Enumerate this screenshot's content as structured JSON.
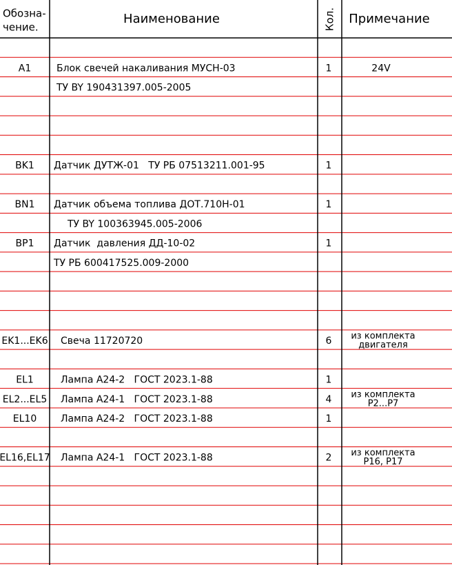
{
  "header": {
    "designation": [
      "Обозна-",
      "чение."
    ],
    "name": "Наименование",
    "qty": "Кол.",
    "note": "Примечание"
  },
  "table": {
    "rows": [
      {},
      {
        "designation": "A1",
        "name": "Блок свечей накаливания МУСН-03",
        "qty": "1",
        "note": [
          "24V"
        ]
      },
      {
        "name": "ТУ BY 190431397.005-2005"
      },
      {},
      {},
      {},
      {
        "designation": "BK1",
        "name": "Датчик ДУТЖ-01   ТУ РБ 07513211.001-95",
        "qty": "1"
      },
      {},
      {
        "designation": "BN1",
        "name": "Датчик объема топлива ДОТ.710Н-01",
        "qty": "1"
      },
      {
        "name": "ТУ BY 100363945.005-2006"
      },
      {
        "designation": "BP1",
        "name": "Датчик  давления ДД-10-02",
        "qty": "1"
      },
      {
        "name": "ТУ РБ 600417525.009-2000"
      },
      {},
      {},
      {},
      {
        "designation": "EK1...EK6",
        "name": "Свеча 11720720",
        "qty": "6",
        "note": [
          "из комплекта",
          "двигателя"
        ]
      },
      {},
      {
        "designation": "EL1",
        "name": "Лампа А24-2   ГОСТ 2023.1-88",
        "qty": "1"
      },
      {
        "designation": "EL2...EL5",
        "name": "Лампа А24-1   ГОСТ 2023.1-88",
        "qty": "4",
        "note": [
          "из комплекта",
          "Р2...Р7"
        ]
      },
      {
        "designation": "EL10",
        "name": "Лампа А24-2   ГОСТ 2023.1-88",
        "qty": "1"
      },
      {},
      {
        "designation": "EL16,EL17",
        "name": "Лампа А24-1   ГОСТ 2023.1-88",
        "qty": "2",
        "note": [
          "из комплекта",
          "Р16, Р17"
        ]
      },
      {},
      {},
      {},
      {},
      {}
    ]
  }
}
